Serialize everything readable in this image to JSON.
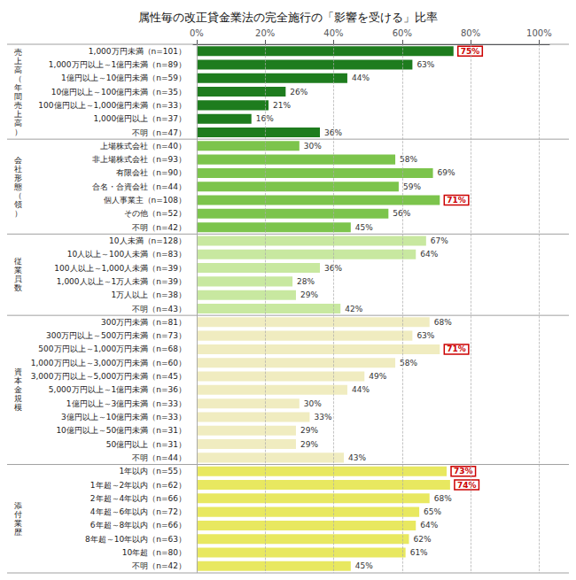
{
  "chart_data": {
    "type": "bar",
    "title": "属性毎の改正貸金業法の完全施行の「影響を受ける」比率",
    "orientation": "horizontal",
    "categories": [
      "1,000万円未満（n=101）",
      "1,000万円以上～1億円未満（n=89）",
      "1億円以上～10億円未満（n=59）",
      "10億円以上～100億円未満（n=35）",
      "100億円以上～1,000億円未満（n=33）",
      "1,000億円以上（n=37）",
      "不明（n=47）",
      "上場株式会社（n=40）",
      "非上場株式会社（n=93）",
      "有限会社（n=90）",
      "合名・合資会社（n=44）",
      "個人事業主（n=108）",
      "その他（n=52）",
      "不明（n=42）",
      "10人未満（n=128）",
      "10人以上～100人未満（n=83）",
      "100人以上～1,000人未満（n=39）",
      "1,000人以上～1万人未満（n=39）",
      "1万人以上（n=38）",
      "不明（n=43）",
      "300万円未満（n=81）",
      "300万円以上～500万円未満（n=73）",
      "500万円以上～1,000万円未満（n=68）",
      "1,000万円以上～3,000万円未満（n=60）",
      "3,000万円以上～5,000万円未満（n=45）",
      "5,000万円以上～1億円未満（n=36）",
      "1億円以上～3億円未満（n=33）",
      "3億円以上～10億円未満（n=33）",
      "10億円以上～50億円未満（n=31）",
      "50億円以上（n=31）",
      "不明（n=44）",
      "1年以内（n=55）",
      "1年超～2年以内（n=62）",
      "2年超～4年以内（n=66）",
      "4年超～6年以内（n=72）",
      "6年超～8年以内（n=66）",
      "8年超～10年以内（n=63）",
      "10年超（n=80）",
      "不明（n=42）"
    ],
    "values": [
      75,
      63,
      44,
      26,
      21,
      16,
      36,
      30,
      58,
      69,
      59,
      71,
      56,
      45,
      67,
      64,
      36,
      28,
      29,
      42,
      68,
      63,
      71,
      58,
      49,
      44,
      30,
      33,
      29,
      29,
      43,
      73,
      74,
      68,
      65,
      64,
      62,
      61,
      45
    ],
    "value_labels": [
      "75%",
      "63%",
      "44%",
      "26%",
      "21%",
      "16%",
      "36%",
      "30%",
      "58%",
      "69%",
      "59%",
      "71%",
      "56%",
      "45%",
      "67%",
      "64%",
      "36%",
      "28%",
      "29%",
      "42%",
      "68%",
      "63%",
      "71%",
      "58%",
      "49%",
      "44%",
      "30%",
      "33%",
      "29%",
      "29%",
      "43%",
      "73%",
      "74%",
      "68%",
      "65%",
      "64%",
      "62%",
      "61%",
      "45%"
    ],
    "colors": [
      "#1e7c1e",
      "#1e7c1e",
      "#1e7c1e",
      "#1e7c1e",
      "#1e7c1e",
      "#1e7c1e",
      "#1e7c1e",
      "#7cc44c",
      "#7cc44c",
      "#7cc44c",
      "#7cc44c",
      "#7cc44c",
      "#7cc44c",
      "#7cc44c",
      "#c8e8a0",
      "#c8e8a0",
      "#c8e8a0",
      "#c8e8a0",
      "#c8e8a0",
      "#c8e8a0",
      "#f0ecc0",
      "#f0ecc0",
      "#f0ecc0",
      "#f0ecc0",
      "#f0ecc0",
      "#f0ecc0",
      "#f0ecc0",
      "#f0ecc0",
      "#f0ecc0",
      "#f0ecc0",
      "#f0ecc0",
      "#e8e860",
      "#e8e860",
      "#e8e860",
      "#e8e860",
      "#e8e860",
      "#e8e860",
      "#e8e860",
      "#e8e860"
    ],
    "highlight": [
      true,
      false,
      false,
      false,
      false,
      false,
      false,
      false,
      false,
      false,
      false,
      true,
      false,
      false,
      false,
      false,
      false,
      false,
      false,
      false,
      false,
      false,
      true,
      false,
      false,
      false,
      false,
      false,
      false,
      false,
      false,
      true,
      true,
      false,
      false,
      false,
      false,
      false,
      false
    ],
    "highlight_color": "#cc0000",
    "annotations": [
      {
        "text": "売\n上\n高\n（\n年\n間\n売\n上\n高\n）",
        "from": "1,000万円未満（n=101）"
      },
      {
        "text": "会\n社\n形\n態\n（\n領\n）",
        "from": "上場株式会社（n=40）"
      },
      {
        "text": "従\n業\n員\n数",
        "from": "10人未満（n=128）"
      },
      {
        "text": "資\n本\n金\n規\n模",
        "from": "300万円未満（n=81）"
      },
      {
        "text": "添\n付\n業\n歴",
        "from": "1年以内（n=55）"
      }
    ],
    "xlim": [
      -1,
      103
    ],
    "xticks": [
      {
        "value": 0,
        "label": "0%"
      },
      {
        "value": 20,
        "label": "20%"
      },
      {
        "value": 40,
        "label": "40%"
      },
      {
        "value": 60,
        "label": "60%"
      },
      {
        "value": 80,
        "label": "80%"
      },
      {
        "value": 100,
        "label": "100%"
      }
    ],
    "grid": true,
    "data_labels": true
  }
}
